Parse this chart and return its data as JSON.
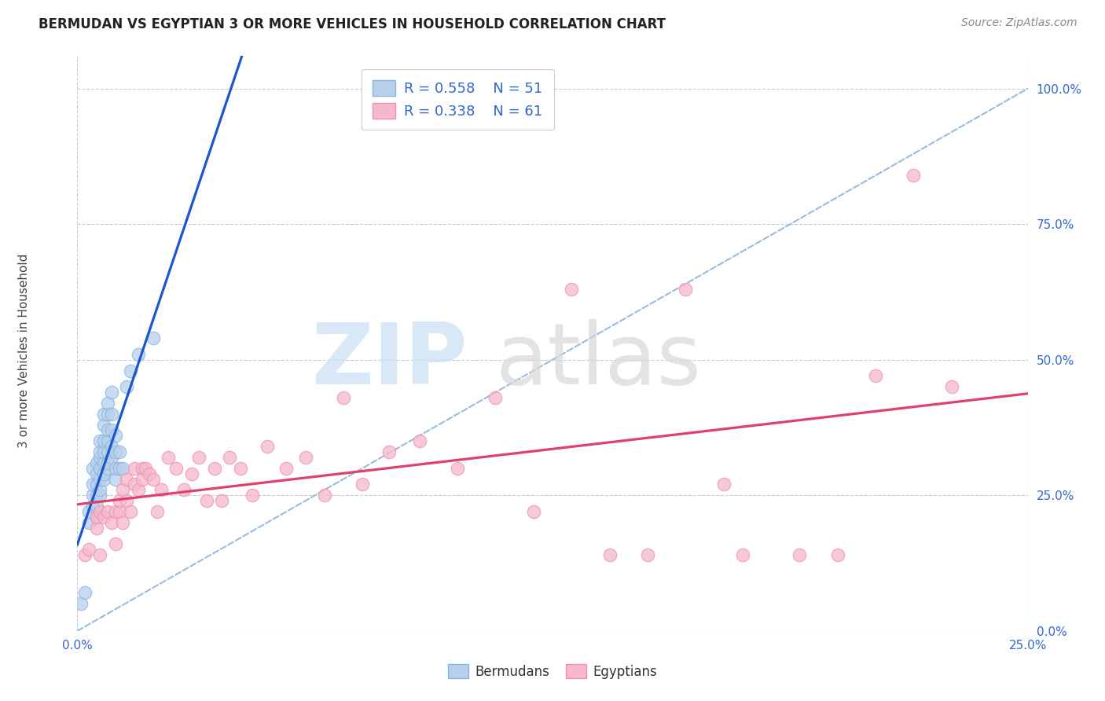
{
  "title": "BERMUDAN VS EGYPTIAN 3 OR MORE VEHICLES IN HOUSEHOLD CORRELATION CHART",
  "source": "Source: ZipAtlas.com",
  "ylabel": "3 or more Vehicles in Household",
  "xlim": [
    0.0,
    0.25
  ],
  "ylim": [
    0.0,
    1.06
  ],
  "xticks": [
    0.0,
    0.25
  ],
  "yticks": [
    0.0,
    0.25,
    0.5,
    0.75,
    1.0
  ],
  "xtick_labels": [
    "0.0%",
    "25.0%"
  ],
  "ytick_labels": [
    "0.0%",
    "25.0%",
    "50.0%",
    "75.0%",
    "100.0%"
  ],
  "bermudan_R": "0.558",
  "bermudan_N": "51",
  "egyptian_R": "0.338",
  "egyptian_N": "61",
  "blue_fill": "#b8d0ec",
  "pink_fill": "#f5b8cc",
  "blue_edge": "#88b4e0",
  "pink_edge": "#f090b0",
  "blue_line": "#1a56cc",
  "pink_line": "#e0406a",
  "diag_color": "#99bbdd",
  "tick_color": "#3366cc",
  "grid_color": "#cccccc",
  "title_color": "#222222",
  "source_color": "#888888",
  "watermark_zip_color": "#c8dff5",
  "watermark_atlas_color": "#d8d8d8",
  "bermudan_x": [
    0.001,
    0.002,
    0.003,
    0.003,
    0.004,
    0.004,
    0.004,
    0.004,
    0.005,
    0.005,
    0.005,
    0.005,
    0.005,
    0.005,
    0.006,
    0.006,
    0.006,
    0.006,
    0.006,
    0.006,
    0.006,
    0.007,
    0.007,
    0.007,
    0.007,
    0.007,
    0.007,
    0.007,
    0.008,
    0.008,
    0.008,
    0.008,
    0.008,
    0.008,
    0.008,
    0.009,
    0.009,
    0.009,
    0.009,
    0.009,
    0.01,
    0.01,
    0.01,
    0.01,
    0.011,
    0.011,
    0.012,
    0.013,
    0.014,
    0.016,
    0.02
  ],
  "bermudan_y": [
    0.05,
    0.07,
    0.2,
    0.22,
    0.23,
    0.25,
    0.27,
    0.3,
    0.21,
    0.23,
    0.25,
    0.27,
    0.29,
    0.31,
    0.25,
    0.26,
    0.28,
    0.3,
    0.32,
    0.33,
    0.35,
    0.28,
    0.29,
    0.31,
    0.33,
    0.35,
    0.38,
    0.4,
    0.3,
    0.31,
    0.33,
    0.35,
    0.37,
    0.4,
    0.42,
    0.32,
    0.34,
    0.37,
    0.4,
    0.44,
    0.28,
    0.3,
    0.33,
    0.36,
    0.3,
    0.33,
    0.3,
    0.45,
    0.48,
    0.51,
    0.54
  ],
  "egyptian_x": [
    0.002,
    0.003,
    0.005,
    0.005,
    0.006,
    0.006,
    0.007,
    0.008,
    0.009,
    0.01,
    0.01,
    0.011,
    0.011,
    0.012,
    0.012,
    0.013,
    0.013,
    0.014,
    0.015,
    0.015,
    0.016,
    0.017,
    0.017,
    0.018,
    0.019,
    0.02,
    0.021,
    0.022,
    0.024,
    0.026,
    0.028,
    0.03,
    0.032,
    0.034,
    0.036,
    0.038,
    0.04,
    0.043,
    0.046,
    0.05,
    0.055,
    0.06,
    0.065,
    0.07,
    0.075,
    0.082,
    0.09,
    0.1,
    0.11,
    0.12,
    0.13,
    0.14,
    0.15,
    0.16,
    0.17,
    0.175,
    0.19,
    0.2,
    0.21,
    0.22,
    0.23
  ],
  "egyptian_y": [
    0.14,
    0.15,
    0.19,
    0.21,
    0.22,
    0.14,
    0.21,
    0.22,
    0.2,
    0.22,
    0.16,
    0.22,
    0.24,
    0.2,
    0.26,
    0.24,
    0.28,
    0.22,
    0.27,
    0.3,
    0.26,
    0.3,
    0.28,
    0.3,
    0.29,
    0.28,
    0.22,
    0.26,
    0.32,
    0.3,
    0.26,
    0.29,
    0.32,
    0.24,
    0.3,
    0.24,
    0.32,
    0.3,
    0.25,
    0.34,
    0.3,
    0.32,
    0.25,
    0.43,
    0.27,
    0.33,
    0.35,
    0.3,
    0.43,
    0.22,
    0.63,
    0.14,
    0.14,
    0.63,
    0.27,
    0.14,
    0.14,
    0.14,
    0.47,
    0.84,
    0.45
  ]
}
